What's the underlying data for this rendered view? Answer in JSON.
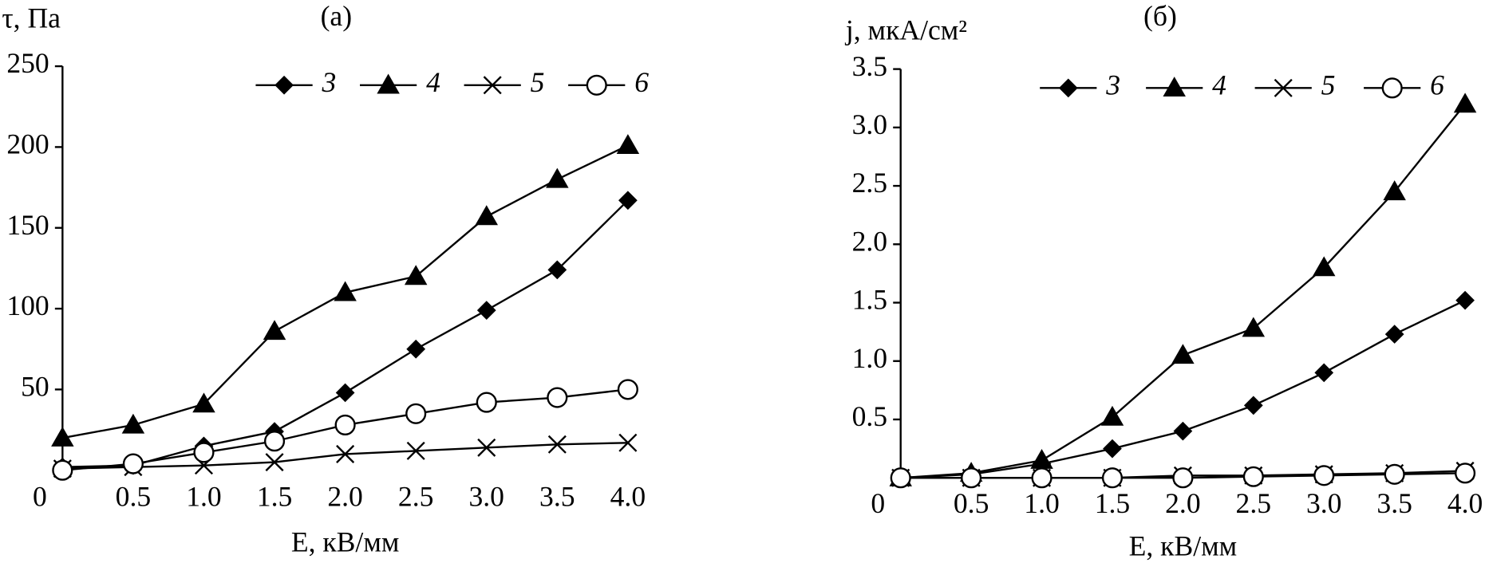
{
  "chart_data": [
    {
      "type": "line",
      "title": "(a)",
      "ylabel": "τ, Па",
      "xlabel": "E, кВ/мм",
      "x": [
        0,
        0.5,
        1,
        1.5,
        2,
        2.5,
        3,
        3.5,
        4
      ],
      "xlim": [
        0,
        4
      ],
      "ylim": [
        0,
        250
      ],
      "xticks": [
        0,
        {
          "value": 0.5,
          "label": "0.5"
        },
        {
          "value": 1,
          "label": "1.0"
        },
        {
          "value": 1.5,
          "label": "1.5"
        },
        {
          "value": 2,
          "label": "2.0"
        },
        {
          "value": 2.5,
          "label": "2.5"
        },
        {
          "value": 3,
          "label": "3.0"
        },
        {
          "value": 3.5,
          "label": "3.5"
        },
        {
          "value": 4,
          "label": "4.0"
        }
      ],
      "yticks": [
        50,
        100,
        150,
        200,
        250
      ],
      "series": [
        {
          "name": "3",
          "color": "#000000",
          "marker": "diamond",
          "values": [
            2,
            3,
            15,
            24,
            48,
            75,
            99,
            124,
            167
          ]
        },
        {
          "name": "4",
          "color": "#000000",
          "marker": "triangle",
          "values": [
            20,
            28,
            41,
            86,
            110,
            120,
            157,
            180,
            201
          ]
        },
        {
          "name": "5",
          "color": "#000000",
          "marker": "cross",
          "values": [
            1,
            2,
            3,
            5,
            10,
            12,
            14,
            16,
            17
          ]
        },
        {
          "name": "6",
          "color": "#000000",
          "marker": "circle",
          "values": [
            0,
            4,
            11,
            18,
            28,
            35,
            42,
            45,
            50
          ]
        }
      ]
    },
    {
      "type": "line",
      "title": "(б)",
      "ylabel": "j, мкА/см²",
      "xlabel": "E, кВ/мм",
      "x": [
        0,
        0.5,
        1,
        1.5,
        2,
        2.5,
        3,
        3.5,
        4
      ],
      "xlim": [
        0,
        4
      ],
      "ylim": [
        0,
        3.5
      ],
      "xticks": [
        0,
        {
          "value": 0.5,
          "label": "0.5"
        },
        {
          "value": 1,
          "label": "1.0"
        },
        {
          "value": 1.5,
          "label": "1.5"
        },
        {
          "value": 2,
          "label": "2.0"
        },
        {
          "value": 2.5,
          "label": "2.5"
        },
        {
          "value": 3,
          "label": "3.0"
        },
        {
          "value": 3.5,
          "label": "3.5"
        },
        {
          "value": 4,
          "label": "4.0"
        }
      ],
      "yticks": [
        0.5,
        {
          "value": 1,
          "label": "1.0"
        },
        1.5,
        {
          "value": 2,
          "label": "2.0"
        },
        2.5,
        {
          "value": 3,
          "label": "3.0"
        },
        3.5
      ],
      "series": [
        {
          "name": "3",
          "color": "#000000",
          "marker": "diamond",
          "values": [
            0,
            0.03,
            0.12,
            0.25,
            0.4,
            0.62,
            0.9,
            1.23,
            1.52
          ]
        },
        {
          "name": "4",
          "color": "#000000",
          "marker": "triangle",
          "values": [
            0,
            0.04,
            0.15,
            0.52,
            1.05,
            1.28,
            1.8,
            2.45,
            3.2
          ]
        },
        {
          "name": "5",
          "color": "#000000",
          "marker": "cross",
          "values": [
            0,
            0,
            0,
            0,
            0.02,
            0.02,
            0.03,
            0.04,
            0.06
          ]
        },
        {
          "name": "6",
          "color": "#000000",
          "marker": "circle",
          "values": [
            0,
            0,
            0,
            0,
            0,
            0.01,
            0.02,
            0.03,
            0.04
          ]
        }
      ]
    }
  ]
}
